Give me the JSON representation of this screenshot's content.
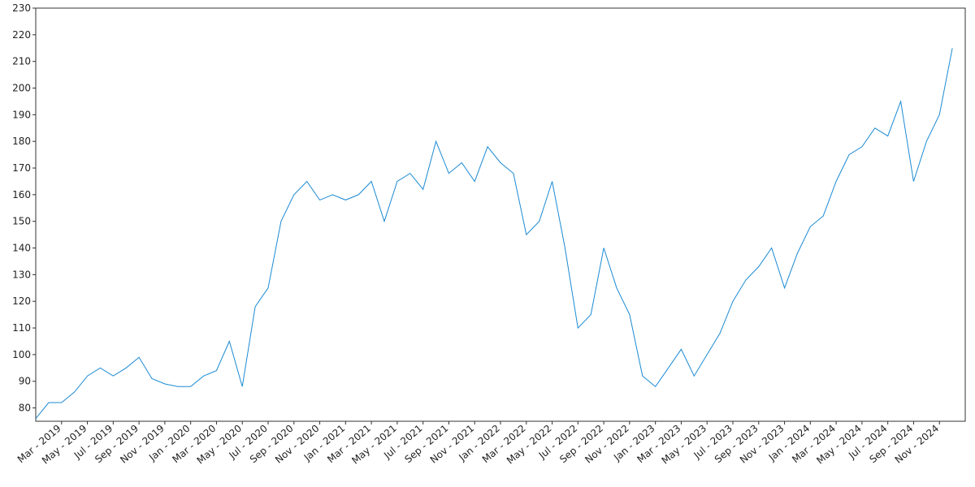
{
  "chart_data": {
    "type": "line",
    "x": [
      "2019-01",
      "2019-02",
      "2019-03",
      "2019-04",
      "2019-05",
      "2019-06",
      "2019-07",
      "2019-08",
      "2019-09",
      "2019-10",
      "2019-11",
      "2019-12",
      "2020-01",
      "2020-02",
      "2020-03",
      "2020-04",
      "2020-05",
      "2020-06",
      "2020-07",
      "2020-08",
      "2020-09",
      "2020-10",
      "2020-11",
      "2020-12",
      "2021-01",
      "2021-02",
      "2021-03",
      "2021-04",
      "2021-05",
      "2021-06",
      "2021-07",
      "2021-08",
      "2021-09",
      "2021-10",
      "2021-11",
      "2021-12",
      "2022-01",
      "2022-02",
      "2022-03",
      "2022-04",
      "2022-05",
      "2022-06",
      "2022-07",
      "2022-08",
      "2022-09",
      "2022-10",
      "2022-11",
      "2022-12",
      "2023-01",
      "2023-02",
      "2023-03",
      "2023-04",
      "2023-05",
      "2023-06",
      "2023-07",
      "2023-08",
      "2023-09",
      "2023-10",
      "2023-11",
      "2023-12",
      "2024-01",
      "2024-02",
      "2024-03",
      "2024-04",
      "2024-05",
      "2024-06",
      "2024-07",
      "2024-08",
      "2024-09",
      "2024-10",
      "2024-11",
      "2024-12"
    ],
    "series": [
      {
        "color": "#1b8ad3",
        "values": [
          76,
          82,
          82,
          86,
          92,
          95,
          92,
          95,
          99,
          91,
          89,
          88,
          88,
          92,
          94,
          105,
          88,
          118,
          125,
          150,
          160,
          165,
          158,
          160,
          158,
          160,
          165,
          150,
          165,
          168,
          162,
          180,
          168,
          172,
          165,
          178,
          172,
          168,
          145,
          150,
          165,
          140,
          110,
          115,
          140,
          125,
          115,
          92,
          88,
          95,
          102,
          92,
          100,
          108,
          120,
          128,
          133,
          140,
          125,
          138,
          148,
          152,
          165,
          175,
          178,
          185,
          182,
          195,
          165,
          180,
          190,
          215
        ]
      }
    ],
    "xlim": [
      "2019-01",
      "2025-01"
    ],
    "xticks": [
      {
        "value": "2019-03",
        "label": "Mar - 2019"
      },
      {
        "value": "2019-05",
        "label": "May - 2019"
      },
      {
        "value": "2019-07",
        "label": "Jul - 2019"
      },
      {
        "value": "2019-09",
        "label": "Sep - 2019"
      },
      {
        "value": "2019-11",
        "label": "Nov - 2019"
      },
      {
        "value": "2020-01",
        "label": "Jan - 2020"
      },
      {
        "value": "2020-03",
        "label": "Mar - 2020"
      },
      {
        "value": "2020-05",
        "label": "May - 2020"
      },
      {
        "value": "2020-07",
        "label": "Jul - 2020"
      },
      {
        "value": "2020-09",
        "label": "Sep - 2020"
      },
      {
        "value": "2020-11",
        "label": "Nov - 2020"
      },
      {
        "value": "2021-01",
        "label": "Jan - 2021"
      },
      {
        "value": "2021-03",
        "label": "Mar - 2021"
      },
      {
        "value": "2021-05",
        "label": "May - 2021"
      },
      {
        "value": "2021-07",
        "label": "Jul - 2021"
      },
      {
        "value": "2021-09",
        "label": "Sep - 2021"
      },
      {
        "value": "2021-11",
        "label": "Nov - 2021"
      },
      {
        "value": "2022-01",
        "label": "Jan - 2022"
      },
      {
        "value": "2022-03",
        "label": "Mar - 2022"
      },
      {
        "value": "2022-05",
        "label": "May - 2022"
      },
      {
        "value": "2022-07",
        "label": "Jul - 2022"
      },
      {
        "value": "2022-09",
        "label": "Sep - 2022"
      },
      {
        "value": "2022-11",
        "label": "Nov - 2022"
      },
      {
        "value": "2023-01",
        "label": "Jan - 2023"
      },
      {
        "value": "2023-03",
        "label": "Mar - 2023"
      },
      {
        "value": "2023-05",
        "label": "May - 2023"
      },
      {
        "value": "2023-07",
        "label": "Jul - 2023"
      },
      {
        "value": "2023-09",
        "label": "Sep - 2023"
      },
      {
        "value": "2023-11",
        "label": "Nov - 2023"
      },
      {
        "value": "2024-01",
        "label": "Jan - 2024"
      },
      {
        "value": "2024-03",
        "label": "Mar - 2024"
      },
      {
        "value": "2024-05",
        "label": "May - 2024"
      },
      {
        "value": "2024-07",
        "label": "Jul - 2024"
      },
      {
        "value": "2024-09",
        "label": "Sep - 2024"
      },
      {
        "value": "2024-11",
        "label": "Nov - 2024"
      }
    ],
    "ylim": [
      75,
      230
    ],
    "yticks": [
      80,
      90,
      100,
      110,
      120,
      130,
      140,
      150,
      160,
      170,
      180,
      190,
      200,
      210,
      220,
      230
    ]
  }
}
